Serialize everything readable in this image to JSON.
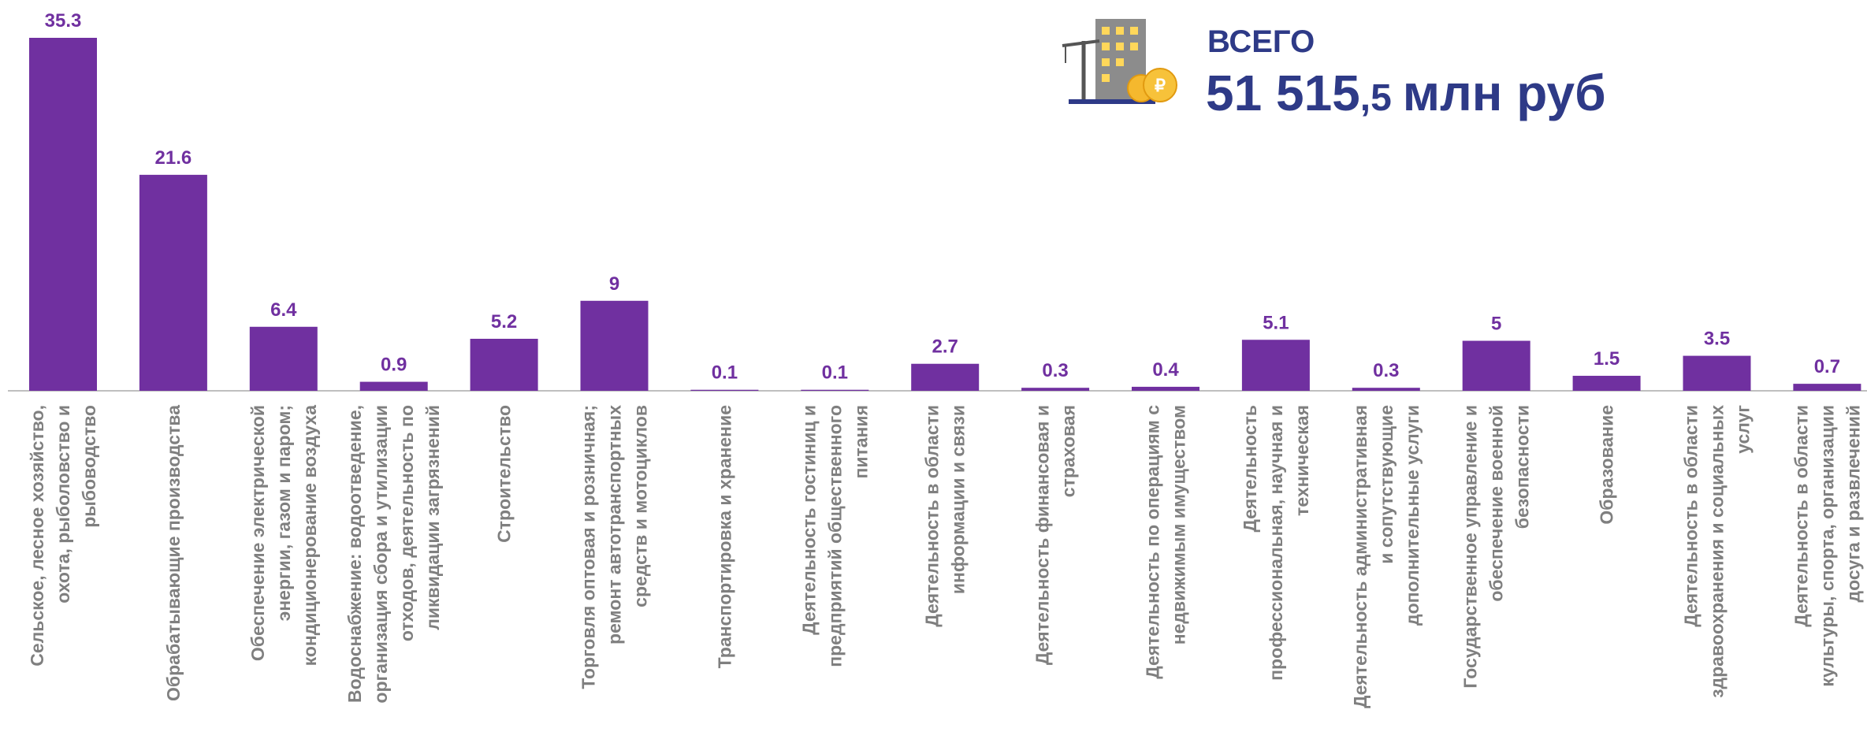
{
  "header": {
    "label": "ВСЕГО",
    "total_integer": "51 515",
    "total_fraction": ",5",
    "unit": "млн руб"
  },
  "chart_data": {
    "type": "bar",
    "color": "#7030a0",
    "categories": [
      [
        "Сельское, лесное хозяйство,",
        "охота, рыболовство и",
        "рыбоводство"
      ],
      [
        "Обрабатывающие производства"
      ],
      [
        "Обеспечение электрической",
        "энергии, газом и паром;",
        "кондиционерование воздуха"
      ],
      [
        "Водоснабжение: водоотведение,",
        "организация сбора и утилизации",
        "отходов, деятельность по",
        "ликвидации загрязнений"
      ],
      [
        "Строительство"
      ],
      [
        "Торговля оптовая и розничная;",
        "ремонт автотранспортных",
        "средств и мотоциклов"
      ],
      [
        "Транспортировка и хранение"
      ],
      [
        "Деятельность гостиниц и",
        "предприятий общественного",
        "питания"
      ],
      [
        "Деятельность в области",
        "информации и связи"
      ],
      [
        "Деятельность финансовая и",
        "страховая"
      ],
      [
        "Деятельность по операциям с",
        "недвижимым имуществом"
      ],
      [
        "Деятельность",
        "профессиональная, научная и",
        "техническая"
      ],
      [
        "Деятельность административная",
        "и сопутствующие",
        "дополнительные услуги"
      ],
      [
        "Государственное управление и",
        "обеспечение военной",
        "безопасности"
      ],
      [
        "Образование"
      ],
      [
        "Деятельность в области",
        "здравоохранения и социальных",
        "услуг"
      ],
      [
        "Деятельность в области",
        "культуры, спорта, организации",
        "досуга и развлечений"
      ]
    ],
    "values": [
      35.3,
      21.6,
      6.4,
      0.9,
      5.2,
      9,
      0.1,
      0.1,
      2.7,
      0.3,
      0.4,
      5.1,
      0.3,
      5,
      1.5,
      3.5,
      0.7
    ]
  }
}
